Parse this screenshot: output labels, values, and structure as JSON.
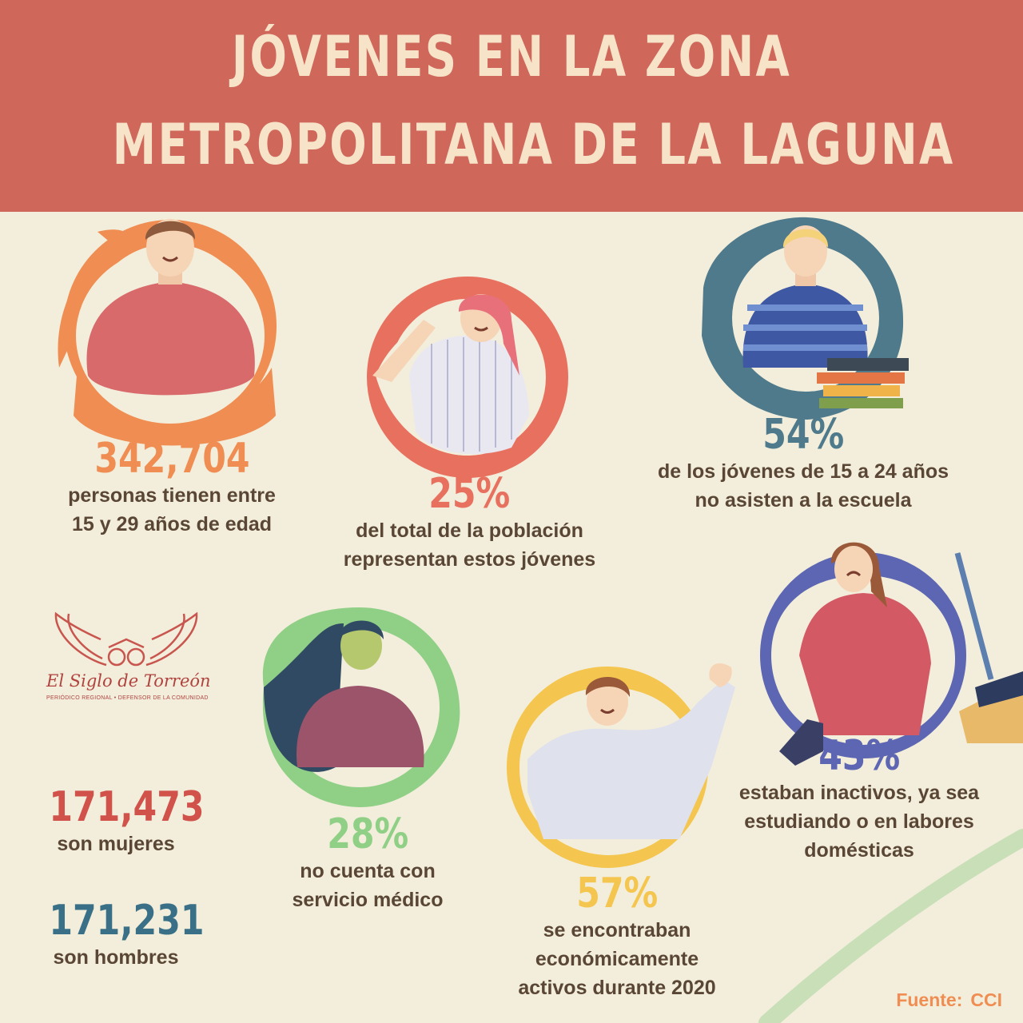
{
  "header": {
    "title_line1": "JÓVENES EN LA ZONA",
    "title_line2": "METROPOLITANA DE LA LAGUNA"
  },
  "colors": {
    "header_bg": "#cf675a",
    "background": "#f3eedb",
    "orange": "#ef8d52",
    "coral": "#e8705f",
    "steel_blue": "#4e7a8c",
    "green": "#8fcf86",
    "yellow": "#f4c64f",
    "indigo": "#5d66b2",
    "red": "#d0524b",
    "teal": "#3a7087",
    "text_brown": "#5a4634"
  },
  "stats": {
    "total": {
      "value": "342,704",
      "line1": "personas tienen entre",
      "line2": "15 y 29 años de edad",
      "icon": "young-man-illustration"
    },
    "share": {
      "value": "25%",
      "line1": "del total de la población",
      "line2": "representan estos jóvenes",
      "icon": "waving-girl-illustration"
    },
    "school": {
      "value": "54%",
      "line1": "de los jóvenes de 15 a 24 años",
      "line2": "no asisten a la escuela",
      "icon": "boy-with-books-illustration"
    },
    "women": {
      "value": "171,473",
      "line1": "son mujeres"
    },
    "men": {
      "value": "171,231",
      "line1": "son hombres"
    },
    "medical": {
      "value": "28%",
      "line1": "no cuenta con",
      "line2": "servicio médico",
      "icon": "sick-woman-illustration"
    },
    "active": {
      "value": "57%",
      "line1": "se encontraban",
      "line2": "económicamente",
      "line3": "activos durante 2020",
      "icon": "waving-boy-illustration"
    },
    "inactive": {
      "value": "43%",
      "line1": "estaban inactivos, ya sea",
      "line2": "estudiando o en labores",
      "line3": "domésticas",
      "icon": "woman-cleaning-illustration"
    }
  },
  "logo": {
    "name": "El Siglo de Torreón",
    "subtitle_left": "PERIÓDICO REGIONAL",
    "subtitle_right": "DEFENSOR DE LA COMUNIDAD",
    "icon": "owl-wings-logo"
  },
  "source": {
    "label": "Fuente:",
    "value": "CCI"
  }
}
